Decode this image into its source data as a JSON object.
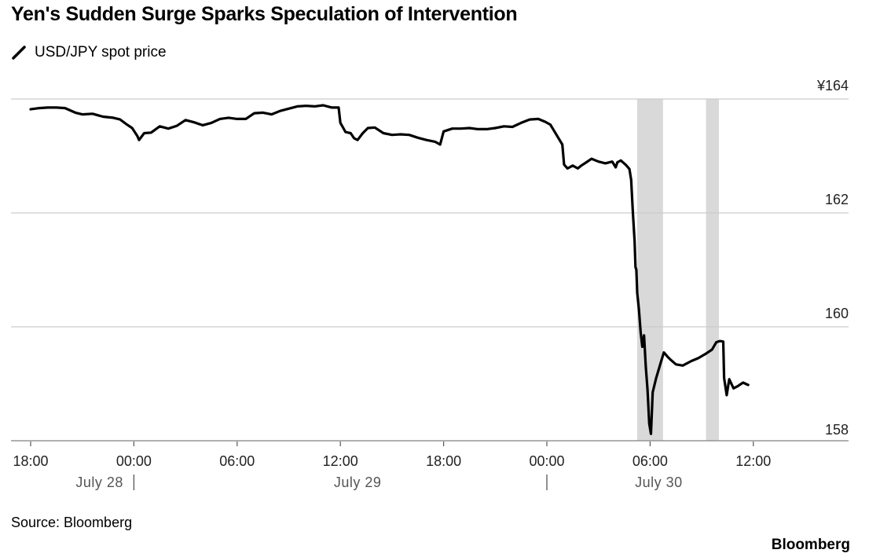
{
  "chart_data": {
    "type": "line",
    "title": "Yen's Sudden Surge Sparks Speculation of Intervention",
    "series": [
      {
        "name": "USD/JPY spot price",
        "color": "#000000",
        "points": [
          [
            0.0,
            163.82
          ],
          [
            0.5,
            163.84
          ],
          [
            1.0,
            163.85
          ],
          [
            1.5,
            163.85
          ],
          [
            2.0,
            163.84
          ],
          [
            2.6,
            163.76
          ],
          [
            3.0,
            163.73
          ],
          [
            3.6,
            163.74
          ],
          [
            4.2,
            163.69
          ],
          [
            4.8,
            163.67
          ],
          [
            5.2,
            163.64
          ],
          [
            5.6,
            163.55
          ],
          [
            5.9,
            163.49
          ],
          [
            6.2,
            163.35
          ],
          [
            6.3,
            163.28
          ],
          [
            6.6,
            163.4
          ],
          [
            7.0,
            163.41
          ],
          [
            7.5,
            163.52
          ],
          [
            8.0,
            163.48
          ],
          [
            8.5,
            163.53
          ],
          [
            9.0,
            163.63
          ],
          [
            9.5,
            163.59
          ],
          [
            10.0,
            163.54
          ],
          [
            10.5,
            163.58
          ],
          [
            11.0,
            163.65
          ],
          [
            11.5,
            163.67
          ],
          [
            12.0,
            163.65
          ],
          [
            12.5,
            163.65
          ],
          [
            13.0,
            163.75
          ],
          [
            13.5,
            163.76
          ],
          [
            14.0,
            163.73
          ],
          [
            14.5,
            163.79
          ],
          [
            15.0,
            163.83
          ],
          [
            15.5,
            163.87
          ],
          [
            16.0,
            163.88
          ],
          [
            16.5,
            163.87
          ],
          [
            17.0,
            163.89
          ],
          [
            17.5,
            163.85
          ],
          [
            17.9,
            163.85
          ],
          [
            18.0,
            163.58
          ],
          [
            18.3,
            163.42
          ],
          [
            18.6,
            163.4
          ],
          [
            18.8,
            163.31
          ],
          [
            19.0,
            163.28
          ],
          [
            19.3,
            163.4
          ],
          [
            19.6,
            163.49
          ],
          [
            20.0,
            163.5
          ],
          [
            20.5,
            163.4
          ],
          [
            21.0,
            163.37
          ],
          [
            21.5,
            163.38
          ],
          [
            22.0,
            163.37
          ],
          [
            22.5,
            163.32
          ],
          [
            23.0,
            163.28
          ],
          [
            23.5,
            163.25
          ],
          [
            23.8,
            163.2
          ],
          [
            24.0,
            163.43
          ],
          [
            24.5,
            163.48
          ],
          [
            25.0,
            163.48
          ],
          [
            25.5,
            163.49
          ],
          [
            26.0,
            163.47
          ],
          [
            26.5,
            163.47
          ],
          [
            27.0,
            163.49
          ],
          [
            27.5,
            163.52
          ],
          [
            28.0,
            163.51
          ],
          [
            28.5,
            163.58
          ],
          [
            29.0,
            163.64
          ],
          [
            29.5,
            163.65
          ],
          [
            29.9,
            163.6
          ],
          [
            30.2,
            163.55
          ],
          [
            30.7,
            163.3
          ],
          [
            30.9,
            163.2
          ],
          [
            31.0,
            162.85
          ],
          [
            31.2,
            162.78
          ],
          [
            31.5,
            162.83
          ],
          [
            31.8,
            162.78
          ],
          [
            32.0,
            162.83
          ],
          [
            32.3,
            162.89
          ],
          [
            32.6,
            162.95
          ],
          [
            33.0,
            162.9
          ],
          [
            33.4,
            162.87
          ],
          [
            33.8,
            162.9
          ],
          [
            34.0,
            162.8
          ],
          [
            34.1,
            162.89
          ],
          [
            34.3,
            162.92
          ],
          [
            34.6,
            162.84
          ],
          [
            34.8,
            162.77
          ],
          [
            34.9,
            162.58
          ],
          [
            35.0,
            162.0
          ],
          [
            35.1,
            161.5
          ],
          [
            35.15,
            161.05
          ],
          [
            35.2,
            161.0
          ],
          [
            35.25,
            160.6
          ],
          [
            35.35,
            160.3
          ],
          [
            35.45,
            159.9
          ],
          [
            35.55,
            159.65
          ],
          [
            35.65,
            159.85
          ],
          [
            35.75,
            159.3
          ],
          [
            35.85,
            158.9
          ],
          [
            35.95,
            158.3
          ],
          [
            36.05,
            158.12
          ],
          [
            36.15,
            158.85
          ],
          [
            36.35,
            159.1
          ],
          [
            36.6,
            159.35
          ],
          [
            36.8,
            159.55
          ],
          [
            37.0,
            159.48
          ],
          [
            37.2,
            159.42
          ],
          [
            37.5,
            159.34
          ],
          [
            37.9,
            159.32
          ],
          [
            38.4,
            159.4
          ],
          [
            38.8,
            159.45
          ],
          [
            39.2,
            159.52
          ],
          [
            39.6,
            159.6
          ],
          [
            39.85,
            159.73
          ],
          [
            40.05,
            159.75
          ],
          [
            40.25,
            159.74
          ],
          [
            40.3,
            159.1
          ],
          [
            40.45,
            158.8
          ],
          [
            40.6,
            159.08
          ],
          [
            40.85,
            158.92
          ],
          [
            41.1,
            158.96
          ],
          [
            41.4,
            159.02
          ],
          [
            41.7,
            158.98
          ]
        ]
      }
    ],
    "x_axis": {
      "range": [
        -0.25,
        44.5
      ],
      "tick_labels": [
        "18:00",
        "00:00",
        "06:00",
        "12:00",
        "18:00",
        "00:00",
        "06:00",
        "12:00"
      ],
      "tick_hours": [
        0,
        6,
        12,
        18,
        24,
        30,
        36,
        42
      ],
      "date_labels": [
        "July 28",
        "July 29",
        "July 30"
      ],
      "date_label_hours": [
        4,
        19,
        36.5
      ],
      "day_separator_hours": [
        6,
        30
      ]
    },
    "y_axis": {
      "range": [
        158,
        164
      ],
      "ticks": [
        164,
        162,
        160,
        158
      ],
      "tick_labels": [
        "¥164",
        "162",
        "160",
        "158"
      ],
      "position": "right",
      "grid": true
    },
    "shaded_ranges": [
      [
        35.25,
        36.75
      ],
      [
        39.25,
        40.0
      ]
    ],
    "shade_color": "#d9d9d9",
    "gridline_color": "#cccccc",
    "source": "Source: Bloomberg",
    "brand": "Bloomberg"
  }
}
